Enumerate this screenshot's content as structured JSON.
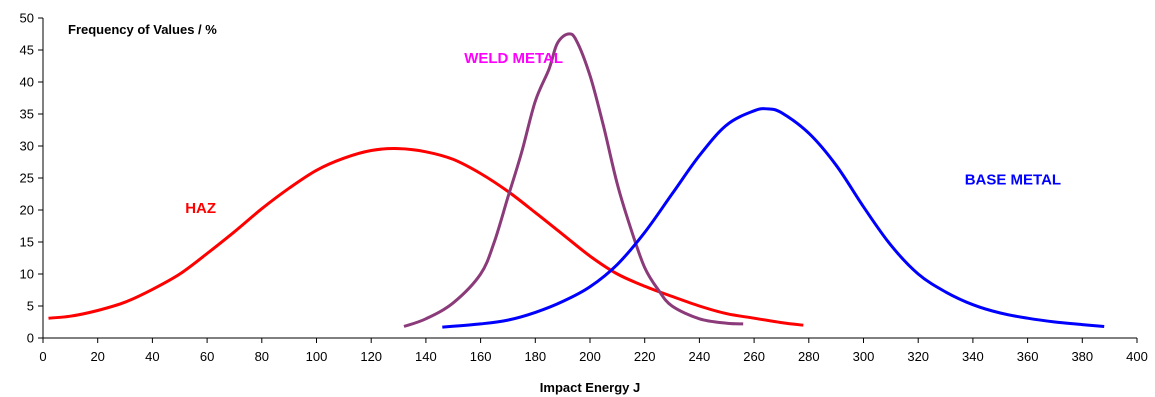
{
  "chart_data": {
    "type": "line",
    "title": "",
    "ylabel": "Frequency of Values / %",
    "xlabel": "Impact Energy J",
    "xlim": [
      0,
      400
    ],
    "ylim": [
      0,
      50
    ],
    "x_ticks": [
      "0",
      "20",
      "40",
      "60",
      "80",
      "100",
      "120",
      "140",
      "160",
      "180",
      "200",
      "220",
      "240",
      "260",
      "280",
      "300",
      "320",
      "340",
      "360",
      "380",
      "400"
    ],
    "y_ticks": [
      "0",
      "5",
      "10",
      "15",
      "20",
      "25",
      "30",
      "35",
      "40",
      "45",
      "50"
    ],
    "grid": false,
    "series": [
      {
        "name": "HAZ",
        "color": "#ff0000",
        "points": [
          [
            2,
            3.1
          ],
          [
            10,
            3.4
          ],
          [
            20,
            4.3
          ],
          [
            30,
            5.6
          ],
          [
            40,
            7.6
          ],
          [
            50,
            10.0
          ],
          [
            60,
            13.2
          ],
          [
            70,
            16.6
          ],
          [
            80,
            20.2
          ],
          [
            90,
            23.4
          ],
          [
            100,
            26.2
          ],
          [
            110,
            28.1
          ],
          [
            120,
            29.3
          ],
          [
            130,
            29.6
          ],
          [
            140,
            29.1
          ],
          [
            150,
            27.9
          ],
          [
            160,
            25.7
          ],
          [
            170,
            22.9
          ],
          [
            180,
            19.6
          ],
          [
            190,
            16.2
          ],
          [
            200,
            12.8
          ],
          [
            210,
            10.0
          ],
          [
            220,
            8.1
          ],
          [
            230,
            6.5
          ],
          [
            240,
            5.0
          ],
          [
            250,
            3.8
          ],
          [
            260,
            3.1
          ],
          [
            270,
            2.4
          ],
          [
            278,
            2.0
          ]
        ]
      },
      {
        "name": "WELD METAL",
        "color": "#8b3a7a",
        "points": [
          [
            132,
            1.8
          ],
          [
            140,
            3.0
          ],
          [
            150,
            5.5
          ],
          [
            160,
            10.0
          ],
          [
            165,
            15.0
          ],
          [
            170,
            22.0
          ],
          [
            175,
            29.0
          ],
          [
            180,
            37.0
          ],
          [
            185,
            42.0
          ],
          [
            188,
            46.0
          ],
          [
            192,
            47.5
          ],
          [
            195,
            46.5
          ],
          [
            200,
            41.0
          ],
          [
            205,
            33.0
          ],
          [
            210,
            24.0
          ],
          [
            215,
            17.0
          ],
          [
            220,
            11.0
          ],
          [
            225,
            7.5
          ],
          [
            230,
            5.0
          ],
          [
            240,
            3.0
          ],
          [
            250,
            2.3
          ],
          [
            256,
            2.2
          ]
        ]
      },
      {
        "name": "BASE METAL",
        "color": "#0000ff",
        "points": [
          [
            146,
            1.7
          ],
          [
            160,
            2.2
          ],
          [
            170,
            2.8
          ],
          [
            180,
            4.0
          ],
          [
            190,
            5.7
          ],
          [
            200,
            8.0
          ],
          [
            210,
            11.5
          ],
          [
            220,
            16.5
          ],
          [
            230,
            22.5
          ],
          [
            240,
            28.5
          ],
          [
            250,
            33.3
          ],
          [
            260,
            35.5
          ],
          [
            265,
            35.8
          ],
          [
            270,
            35.2
          ],
          [
            280,
            32.0
          ],
          [
            290,
            27.0
          ],
          [
            300,
            20.5
          ],
          [
            310,
            14.5
          ],
          [
            320,
            10.0
          ],
          [
            330,
            7.2
          ],
          [
            340,
            5.2
          ],
          [
            350,
            3.9
          ],
          [
            360,
            3.1
          ],
          [
            370,
            2.5
          ],
          [
            380,
            2.1
          ],
          [
            388,
            1.8
          ]
        ]
      }
    ],
    "annotations": [
      {
        "text": "HAZ",
        "series": "HAZ",
        "x": 52,
        "y": 19.5,
        "color": "#ff0000"
      },
      {
        "text": "WELD METAL",
        "series": "WELD METAL",
        "x": 154,
        "y": 43.0,
        "color": "#ff00ff"
      },
      {
        "text": "BASE METAL",
        "series": "BASE METAL",
        "x": 337,
        "y": 24.0,
        "color": "#0000ff"
      }
    ]
  }
}
